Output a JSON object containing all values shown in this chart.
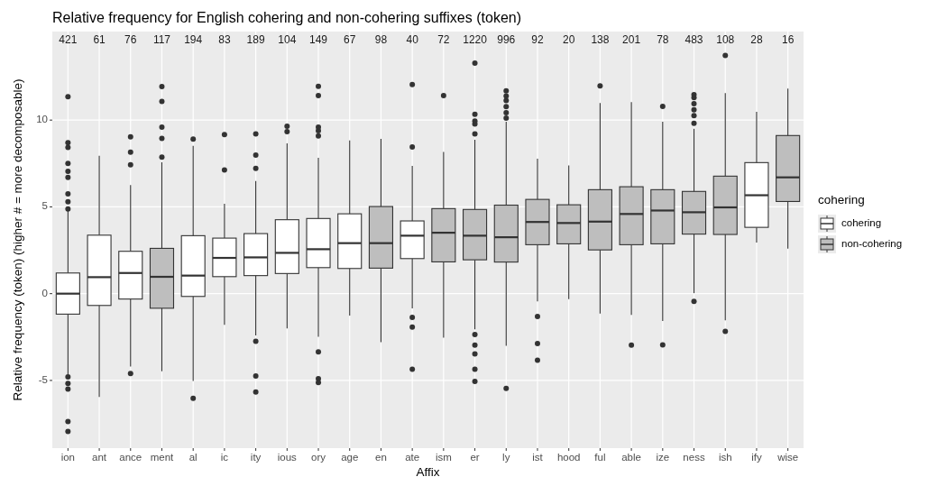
{
  "chart_data": {
    "type": "box",
    "title": "Relative frequency for English cohering and non-cohering suffixes (token)",
    "xlabel": "Affix",
    "ylabel": "Relative frequency (token) (higher # = more decomposable)",
    "legend_title": "cohering",
    "legend": "right",
    "grid": true,
    "categories": [
      "ion",
      "ant",
      "ance",
      "ment",
      "al",
      "ic",
      "ity",
      "ious",
      "ory",
      "age",
      "en",
      "ate",
      "ism",
      "er",
      "ly",
      "ist",
      "hood",
      "ful",
      "able",
      "ize",
      "ness",
      "ish",
      "ify",
      "wise"
    ],
    "ylim": [
      -8.9,
      15.1
    ],
    "yticks": [
      -5,
      0,
      5,
      10
    ],
    "series": [
      {
        "name": "cohering",
        "color": "#ffffff",
        "x": [
          "ion",
          "ant",
          "ance",
          "al",
          "ic",
          "ity",
          "ious",
          "ory",
          "age",
          "ate",
          "ify"
        ],
        "boxes": [
          {
            "low": -4.65,
            "q1": -1.18,
            "median": 0,
            "q3": 1.19,
            "high": 4.8,
            "outliers": [
              4.88,
              5.3,
              5.75,
              6.7,
              7.05,
              7.5,
              8.43,
              8.7,
              11.35,
              -4.8,
              -5.17,
              -5.5,
              -7.37,
              -7.94
            ]
          },
          {
            "low": -5.95,
            "q1": -0.68,
            "median": 0.95,
            "q3": 3.37,
            "high": 7.95
          },
          {
            "low": -4.2,
            "q1": -0.31,
            "median": 1.19,
            "q3": 2.44,
            "high": 6.25,
            "outliers": [
              7.43,
              8.15,
              9.04,
              -4.6
            ]
          },
          {
            "low": -5.03,
            "q1": -0.16,
            "median": 1.04,
            "q3": 3.34,
            "high": 8.52,
            "outliers": [
              8.9,
              -6.03
            ]
          },
          {
            "low": -1.79,
            "q1": 0.98,
            "median": 2.06,
            "q3": 3.2,
            "high": 5.18,
            "outliers": [
              7.13,
              9.16
            ]
          },
          {
            "low": -2.4,
            "q1": 1.04,
            "median": 2.09,
            "q3": 3.46,
            "high": 6.49,
            "outliers": [
              7.22,
              7.98,
              9.21,
              -2.74,
              -4.74,
              -5.66
            ]
          },
          {
            "low": -2,
            "q1": 1.16,
            "median": 2.35,
            "q3": 4.26,
            "high": 8.66,
            "outliers": [
              9.33,
              9.65
            ]
          },
          {
            "low": -2.48,
            "q1": 1.5,
            "median": 2.56,
            "q3": 4.33,
            "high": 7.83,
            "outliers": [
              9.09,
              9.38,
              9.59,
              11.41,
              11.95,
              -3.35,
              -4.9,
              -5.12
            ]
          },
          {
            "low": -1.27,
            "q1": 1.45,
            "median": 2.91,
            "q3": 4.6,
            "high": 8.83
          },
          {
            "low": -0.85,
            "q1": 2.02,
            "median": 3.34,
            "q3": 4.19,
            "high": 7.36,
            "outliers": [
              8.45,
              12.05,
              -1.37,
              -1.93,
              -4.36
            ]
          },
          {
            "low": 2.94,
            "q1": 3.82,
            "median": 5.67,
            "q3": 7.55,
            "high": 10.48
          }
        ]
      },
      {
        "name": "non-cohering",
        "color": "#bebebe",
        "x": [
          "ment",
          "en",
          "ism",
          "er",
          "ly",
          "ist",
          "hood",
          "ful",
          "able",
          "ize",
          "ness",
          "ish",
          "wise"
        ],
        "boxes": [
          {
            "low": -4.47,
            "q1": -0.84,
            "median": 0.97,
            "q3": 2.61,
            "high": 7.57,
            "outliers": [
              7.86,
              8.95,
              9.59,
              11.08,
              11.93
            ]
          },
          {
            "low": -2.79,
            "q1": 1.47,
            "median": 2.91,
            "q3": 5.02,
            "high": 8.92
          },
          {
            "low": -2.53,
            "q1": 1.83,
            "median": 3.51,
            "q3": 4.9,
            "high": 8.17,
            "outliers": [
              11.41
            ]
          },
          {
            "low": -2.05,
            "q1": 1.95,
            "median": 3.34,
            "q3": 4.85,
            "high": 8.86,
            "outliers": [
              9.21,
              9.77,
              9.95,
              10.34,
              13.28,
              -2.36,
              -2.97,
              -3.47,
              -4.36,
              -5.05
            ]
          },
          {
            "low": -3,
            "q1": 1.82,
            "median": 3.25,
            "q3": 5.1,
            "high": 9.9,
            "outliers": [
              10.11,
              10.42,
              10.77,
              11.12,
              11.38,
              11.69,
              -5.46
            ]
          },
          {
            "low": -0.44,
            "q1": 2.82,
            "median": 4.13,
            "q3": 5.43,
            "high": 7.77,
            "outliers": [
              -1.32,
              -2.88,
              -3.83
            ]
          },
          {
            "low": -0.32,
            "q1": 2.87,
            "median": 4.07,
            "q3": 5.12,
            "high": 7.39
          },
          {
            "low": -1.15,
            "q1": 2.52,
            "median": 4.15,
            "q3": 5.99,
            "high": 10.98,
            "outliers": [
              11.97
            ]
          },
          {
            "low": -1.22,
            "q1": 2.82,
            "median": 4.59,
            "q3": 6.16,
            "high": 11.03,
            "outliers": [
              -2.97
            ]
          },
          {
            "low": -1.58,
            "q1": 2.87,
            "median": 4.79,
            "q3": 5.99,
            "high": 9.9,
            "outliers": [
              10.79,
              -2.95
            ]
          },
          {
            "low": 0.03,
            "q1": 3.43,
            "median": 4.69,
            "q3": 5.89,
            "high": 9.5,
            "outliers": [
              9.82,
              10.25,
              10.6,
              10.94,
              11.29,
              11.46,
              -0.45
            ]
          },
          {
            "low": -1.53,
            "q1": 3.41,
            "median": 4.97,
            "q3": 6.77,
            "high": 11.55,
            "outliers": [
              13.72,
              -2.17
            ]
          },
          {
            "low": 2.6,
            "q1": 5.31,
            "median": 6.7,
            "q3": 9.11,
            "high": 11.81
          }
        ]
      }
    ],
    "annotations": [
      "421",
      "61",
      "76",
      "117",
      "194",
      "83",
      "189",
      "104",
      "149",
      "67",
      "98",
      "40",
      "72",
      "1220",
      "996",
      "92",
      "20",
      "138",
      "201",
      "78",
      "483",
      "108",
      "28",
      "16"
    ]
  }
}
